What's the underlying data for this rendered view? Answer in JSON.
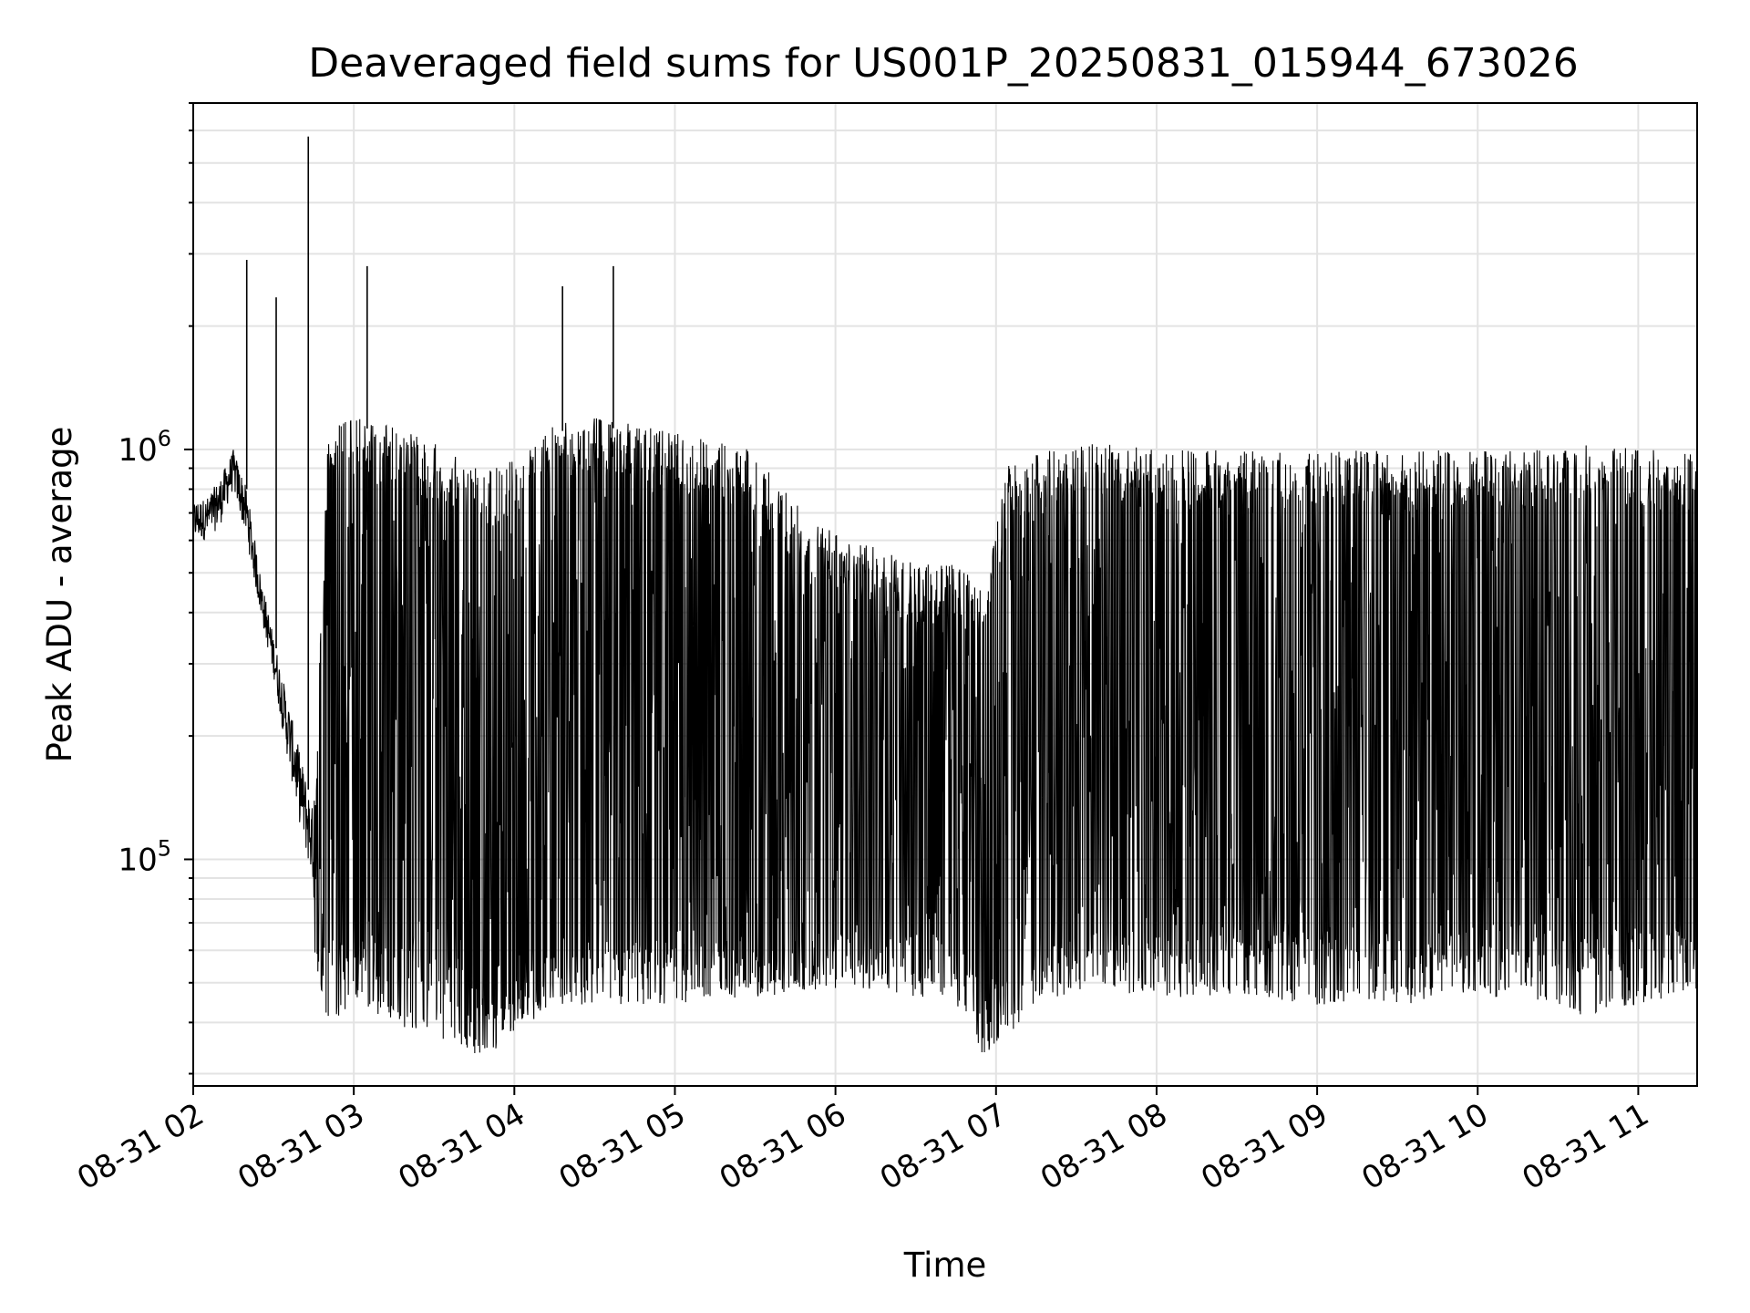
{
  "chart_data": {
    "type": "line",
    "title": "Deaveraged field sums for US001P_20250831_015944_673026",
    "xlabel": "Time",
    "ylabel": "Peak ADU - average",
    "yscale": "log",
    "ylim": [
      28000,
      7000000
    ],
    "xlim": [
      "2025-08-31 02:00",
      "2025-08-31 11:22"
    ],
    "grid": true,
    "x_ticks": [
      "08-31 02",
      "08-31 03",
      "08-31 04",
      "08-31 05",
      "08-31 06",
      "08-31 07",
      "08-31 08",
      "08-31 09",
      "08-31 10",
      "08-31 11"
    ],
    "y_ticks": [
      {
        "value": 100000,
        "base": "10",
        "exp": "5"
      },
      {
        "value": 1000000,
        "base": "10",
        "exp": "6"
      }
    ],
    "line_color": "#000000",
    "series": [
      {
        "values_note_free": true,
        "x": [
          "2025-08-31 02:00",
          "2025-08-31 02:05",
          "2025-08-31 02:10",
          "2025-08-31 02:15",
          "2025-08-31 02:20",
          "2025-08-31 02:25",
          "2025-08-31 02:30",
          "2025-08-31 02:35",
          "2025-08-31 02:40",
          "2025-08-31 02:45",
          "2025-08-31 02:50",
          "2025-08-31 02:55",
          "2025-08-31 03:00",
          "2025-08-31 03:10",
          "2025-08-31 03:20",
          "2025-08-31 03:30",
          "2025-08-31 03:40",
          "2025-08-31 03:50",
          "2025-08-31 04:00",
          "2025-08-31 04:15",
          "2025-08-31 04:30",
          "2025-08-31 04:45",
          "2025-08-31 05:00",
          "2025-08-31 05:15",
          "2025-08-31 05:30",
          "2025-08-31 05:45",
          "2025-08-31 06:00",
          "2025-08-31 06:15",
          "2025-08-31 06:30",
          "2025-08-31 06:45",
          "2025-08-31 06:55",
          "2025-08-31 07:05",
          "2025-08-31 07:20",
          "2025-08-31 07:40",
          "2025-08-31 08:00",
          "2025-08-31 08:30",
          "2025-08-31 09:00",
          "2025-08-31 09:30",
          "2025-08-31 10:00",
          "2025-08-31 10:20",
          "2025-08-31 10:40",
          "2025-08-31 11:00",
          "2025-08-31 11:20"
        ],
        "envelope_high": [
          750000,
          760000,
          850000,
          1000000,
          800000,
          500000,
          350000,
          250000,
          180000,
          130000,
          1000000,
          1100000,
          1150000,
          1100000,
          1050000,
          1000000,
          900000,
          850000,
          900000,
          1100000,
          1150000,
          1100000,
          1050000,
          1000000,
          950000,
          700000,
          600000,
          550000,
          500000,
          500000,
          450000,
          900000,
          950000,
          1000000,
          950000,
          950000,
          950000,
          950000,
          950000,
          950000,
          1000000,
          950000,
          950000
        ],
        "typical_floor": [
          600000,
          600000,
          650000,
          800000,
          600000,
          400000,
          280000,
          180000,
          120000,
          85000,
          60000,
          55000,
          55000,
          55000,
          52000,
          50000,
          48000,
          45000,
          45000,
          52000,
          55000,
          56000,
          55000,
          55000,
          55000,
          56000,
          57000,
          58000,
          57000,
          55000,
          42000,
          45000,
          55000,
          58000,
          60000,
          62000,
          60000,
          58000,
          60000,
          62000,
          58000,
          60000,
          62000
        ],
        "trough": [
          550000,
          550000,
          600000,
          700000,
          550000,
          330000,
          220000,
          150000,
          90000,
          60000,
          45000,
          45000,
          50000,
          45000,
          42000,
          40000,
          38000,
          35000,
          40000,
          48000,
          48000,
          48000,
          48000,
          50000,
          50000,
          50000,
          52000,
          52000,
          50000,
          48000,
          36000,
          40000,
          50000,
          52000,
          50000,
          50000,
          48000,
          48000,
          50000,
          50000,
          45000,
          48000,
          50000
        ],
        "spikes": [
          {
            "x": "2025-08-31 02:20",
            "y": 2900000
          },
          {
            "x": "2025-08-31 02:31",
            "y": 2350000
          },
          {
            "x": "2025-08-31 02:43",
            "y": 5800000
          },
          {
            "x": "2025-08-31 03:05",
            "y": 2800000
          },
          {
            "x": "2025-08-31 04:18",
            "y": 2500000
          },
          {
            "x": "2025-08-31 04:37",
            "y": 2800000
          }
        ]
      }
    ]
  }
}
